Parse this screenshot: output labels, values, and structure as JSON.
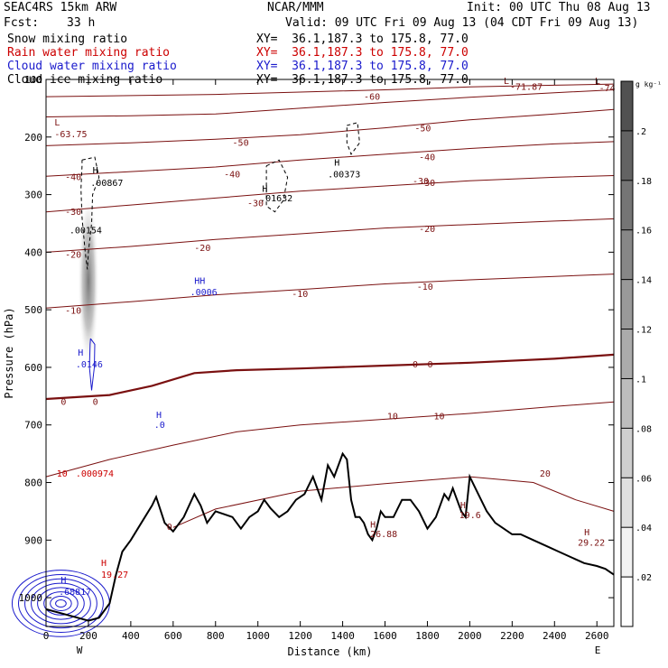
{
  "header": {
    "model": "SEAC4RS 15km ARW",
    "org": "NCAR/MMM",
    "init": "Init: 00 UTC Thu 08 Aug 13",
    "fcst_label": "Fcst:",
    "fcst_value": "33 h",
    "valid": "Valid: 09 UTC Fri 09 Aug 13 (04 CDT Fri 09 Aug 13)"
  },
  "legend": [
    {
      "name": "Snow mixing ratio",
      "xy": "XY=  36.1,187.3 to 175.8, 77.0",
      "color": "#000000"
    },
    {
      "name": "Rain water mixing ratio",
      "xy": "XY=  36.1,187.3 to 175.8, 77.0",
      "color": "#cc0000"
    },
    {
      "name": "Cloud water mixing ratio",
      "xy": "XY=  36.1,187.3 to 175.8, 77.0",
      "color": "#1a1acc"
    },
    {
      "name": "Cloud ice mixing ratio",
      "xy": "XY=  36.1,187.3 to 175.8, 77.0",
      "color": "#000000"
    }
  ],
  "chart_data": {
    "type": "line",
    "xlabel": "Distance (km)",
    "ylabel": "Pressure (hPa)",
    "xlim": [
      0,
      2680
    ],
    "ylim": [
      1050,
      100
    ],
    "xticks": [
      0,
      200,
      400,
      600,
      800,
      1000,
      1200,
      1400,
      1600,
      1800,
      2000,
      2200,
      2400,
      2600
    ],
    "yticks": [
      200,
      300,
      400,
      500,
      600,
      700,
      800,
      900,
      1000
    ],
    "ytick_top_label": "100",
    "x_end_labels": {
      "left": "W",
      "right": "E"
    },
    "colorbar": {
      "unit": "g kg⁻¹",
      "ticks": [
        ".02",
        ".04",
        ".06",
        ".08",
        ".1",
        ".12",
        ".14",
        ".16",
        ".18",
        ".2"
      ],
      "ramp": [
        "#ffffff",
        "#f2f2f2",
        "#e0e0e0",
        "#cfcfcf",
        "#bdbdbd",
        "#ababab",
        "#999999",
        "#878787",
        "#757575",
        "#636363",
        "#515151"
      ]
    },
    "temperature_contours": [
      {
        "value": -70,
        "points": [
          [
            0,
            130
          ],
          [
            400,
            128
          ],
          [
            800,
            126
          ],
          [
            1200,
            122
          ],
          [
            1600,
            118
          ],
          [
            2000,
            113
          ],
          [
            2400,
            110
          ],
          [
            2680,
            108
          ]
        ]
      },
      {
        "value": -60,
        "points": [
          [
            0,
            165
          ],
          [
            400,
            163
          ],
          [
            800,
            160
          ],
          [
            1200,
            150
          ],
          [
            1600,
            140
          ],
          [
            2000,
            131
          ],
          [
            2400,
            123
          ],
          [
            2680,
            118
          ]
        ]
      },
      {
        "value": -50,
        "points": [
          [
            0,
            215
          ],
          [
            400,
            210
          ],
          [
            800,
            204
          ],
          [
            1200,
            196
          ],
          [
            1600,
            184
          ],
          [
            2000,
            170
          ],
          [
            2400,
            160
          ],
          [
            2680,
            152
          ]
        ]
      },
      {
        "value": -40,
        "points": [
          [
            0,
            268
          ],
          [
            400,
            260
          ],
          [
            800,
            252
          ],
          [
            1200,
            240
          ],
          [
            1600,
            230
          ],
          [
            2000,
            220
          ],
          [
            2400,
            212
          ],
          [
            2680,
            208
          ]
        ]
      },
      {
        "value": -30,
        "points": [
          [
            0,
            330
          ],
          [
            400,
            318
          ],
          [
            800,
            306
          ],
          [
            1200,
            294
          ],
          [
            1600,
            285
          ],
          [
            2000,
            276
          ],
          [
            2400,
            270
          ],
          [
            2680,
            267
          ]
        ]
      },
      {
        "value": -20,
        "points": [
          [
            0,
            400
          ],
          [
            400,
            390
          ],
          [
            800,
            378
          ],
          [
            1200,
            368
          ],
          [
            1600,
            358
          ],
          [
            2000,
            352
          ],
          [
            2400,
            346
          ],
          [
            2680,
            342
          ]
        ]
      },
      {
        "value": -10,
        "points": [
          [
            0,
            497
          ],
          [
            400,
            486
          ],
          [
            800,
            474
          ],
          [
            1200,
            465
          ],
          [
            1600,
            455
          ],
          [
            2000,
            448
          ],
          [
            2400,
            442
          ],
          [
            2680,
            438
          ]
        ]
      },
      {
        "value": 0,
        "points": [
          [
            0,
            655
          ],
          [
            300,
            648
          ],
          [
            500,
            632
          ],
          [
            700,
            610
          ],
          [
            900,
            605
          ],
          [
            1200,
            602
          ],
          [
            1600,
            597
          ],
          [
            2000,
            592
          ],
          [
            2400,
            585
          ],
          [
            2680,
            578
          ]
        ]
      },
      {
        "value": 10,
        "points": [
          [
            0,
            790
          ],
          [
            300,
            760
          ],
          [
            600,
            735
          ],
          [
            900,
            712
          ],
          [
            1200,
            700
          ],
          [
            1600,
            690
          ],
          [
            2000,
            680
          ],
          [
            2400,
            668
          ],
          [
            2680,
            660
          ]
        ]
      },
      {
        "value": 20,
        "points": [
          [
            600,
            878
          ],
          [
            800,
            846
          ],
          [
            1200,
            815
          ],
          [
            1600,
            802
          ],
          [
            2000,
            790
          ],
          [
            2300,
            800
          ],
          [
            2500,
            830
          ],
          [
            2680,
            850
          ]
        ]
      }
    ],
    "terrain": {
      "name": "surface pressure",
      "x": [
        0,
        100,
        200,
        250,
        300,
        330,
        360,
        400,
        450,
        500,
        520,
        560,
        600,
        650,
        700,
        730,
        760,
        800,
        840,
        880,
        920,
        960,
        1000,
        1030,
        1060,
        1100,
        1140,
        1180,
        1220,
        1260,
        1300,
        1330,
        1360,
        1380,
        1400,
        1420,
        1440,
        1460,
        1480,
        1500,
        1520,
        1540,
        1560,
        1580,
        1600,
        1640,
        1680,
        1720,
        1760,
        1800,
        1840,
        1880,
        1900,
        1920,
        1940,
        1960,
        1980,
        2000,
        2040,
        2080,
        2120,
        2160,
        2200,
        2240,
        2300,
        2360,
        2420,
        2480,
        2540,
        2600,
        2640,
        2680
      ],
      "y": [
        1020,
        1030,
        1040,
        1035,
        1010,
        960,
        920,
        900,
        870,
        840,
        825,
        870,
        885,
        860,
        820,
        840,
        870,
        850,
        855,
        860,
        880,
        860,
        850,
        830,
        845,
        860,
        850,
        830,
        820,
        790,
        830,
        770,
        790,
        770,
        750,
        760,
        830,
        860,
        860,
        870,
        890,
        900,
        880,
        850,
        860,
        860,
        830,
        830,
        850,
        880,
        860,
        820,
        830,
        810,
        830,
        850,
        860,
        790,
        820,
        850,
        870,
        880,
        890,
        890,
        900,
        910,
        920,
        930,
        940,
        945,
        950,
        960
      ]
    },
    "series": [
      {
        "type": "shaded",
        "label": "shaded mixing ratio",
        "x_center": 200,
        "p_top": 300,
        "p_bottom": 600,
        "width_km": 50,
        "peak": 0.18
      },
      {
        "type": "cloud_ice_contour",
        "points": [
          [
            170,
            240
          ],
          [
            230,
            235
          ],
          [
            250,
            270
          ],
          [
            220,
            300
          ],
          [
            215,
            350
          ],
          [
            200,
            400
          ],
          [
            195,
            430
          ],
          [
            185,
            400
          ],
          [
            170,
            340
          ],
          [
            165,
            290
          ],
          [
            170,
            250
          ],
          [
            170,
            240
          ]
        ]
      },
      {
        "type": "cloud_ice_contour",
        "points": [
          [
            1040,
            250
          ],
          [
            1100,
            240
          ],
          [
            1140,
            270
          ],
          [
            1120,
            310
          ],
          [
            1080,
            330
          ],
          [
            1040,
            320
          ],
          [
            1040,
            250
          ]
        ]
      },
      {
        "type": "cloud_ice_contour",
        "points": [
          [
            1420,
            180
          ],
          [
            1470,
            175
          ],
          [
            1480,
            210
          ],
          [
            1440,
            230
          ],
          [
            1420,
            210
          ],
          [
            1420,
            180
          ]
        ]
      },
      {
        "type": "cloud_water_contour",
        "points": [
          [
            210,
            550
          ],
          [
            230,
            560
          ],
          [
            228,
            600
          ],
          [
            215,
            640
          ],
          [
            205,
            600
          ],
          [
            208,
            560
          ],
          [
            210,
            550
          ]
        ]
      }
    ],
    "rings": [
      {
        "center": [
          70,
          1010
        ],
        "radii": [
          25,
          50,
          80,
          110,
          140,
          170,
          200,
          230
        ]
      }
    ],
    "annotations": [
      {
        "text": "-71.87",
        "x": 2190,
        "p": 118,
        "color": "#7a1010"
      },
      {
        "text": "-74",
        "x": 2610,
        "p": 120,
        "color": "#7a1010"
      },
      {
        "text": "L",
        "x": 2160,
        "p": 108,
        "color": "#7a1010"
      },
      {
        "text": "L",
        "x": 2590,
        "p": 108,
        "color": "#7a1010"
      },
      {
        "text": "L",
        "x": 40,
        "p": 180,
        "color": "#7a1010"
      },
      {
        "text": "-63.75",
        "x": 40,
        "p": 200,
        "color": "#7a1010"
      },
      {
        "text": "H",
        "x": 220,
        "p": 263,
        "color": "#000000"
      },
      {
        "text": ".00867",
        "x": 210,
        "p": 285,
        "color": "#000000"
      },
      {
        "text": ".00154",
        "x": 110,
        "p": 367,
        "color": "#000000"
      },
      {
        "text": "H",
        "x": 1020,
        "p": 295,
        "color": "#000000"
      },
      {
        "text": ".01632",
        "x": 1010,
        "p": 312,
        "color": "#000000"
      },
      {
        "text": "H",
        "x": 1360,
        "p": 250,
        "color": "#000000"
      },
      {
        "text": ".00373",
        "x": 1330,
        "p": 270,
        "color": "#000000"
      },
      {
        "text": "HH",
        "x": 700,
        "p": 455,
        "color": "#1a1acc"
      },
      {
        "text": ".0006",
        "x": 680,
        "p": 475,
        "color": "#1a1acc"
      },
      {
        "text": "H",
        "x": 150,
        "p": 580,
        "color": "#1a1acc"
      },
      {
        "text": ".0146",
        "x": 140,
        "p": 600,
        "color": "#1a1acc"
      },
      {
        "text": "H",
        "x": 520,
        "p": 688,
        "color": "#1a1acc"
      },
      {
        "text": ".0",
        "x": 510,
        "p": 705,
        "color": "#1a1acc"
      },
      {
        "text": "H",
        "x": 70,
        "p": 975,
        "color": "#1a1acc"
      },
      {
        "text": ".68817",
        "x": 60,
        "p": 995,
        "color": "#1a1acc"
      },
      {
        "text": "H",
        "x": 260,
        "p": 945,
        "color": "#cc0000"
      },
      {
        "text": "19.27",
        "x": 260,
        "p": 965,
        "color": "#cc0000"
      },
      {
        "text": "10",
        "x": 50,
        "p": 790,
        "color": "#cc0000"
      },
      {
        "text": ".000974",
        "x": 140,
        "p": 790,
        "color": "#cc0000"
      },
      {
        "text": "26.88",
        "x": 1530,
        "p": 895,
        "color": "#7a1010"
      },
      {
        "text": "H",
        "x": 1530,
        "p": 878,
        "color": "#7a1010"
      },
      {
        "text": "H",
        "x": 1955,
        "p": 845,
        "color": "#7a1010"
      },
      {
        "text": "19.6",
        "x": 1950,
        "p": 862,
        "color": "#7a1010"
      },
      {
        "text": "H",
        "x": 2540,
        "p": 892,
        "color": "#7a1010"
      },
      {
        "text": "29.22",
        "x": 2510,
        "p": 910,
        "color": "#7a1010"
      },
      {
        "text": "20",
        "x": 2330,
        "p": 790,
        "color": "#7a1010"
      },
      {
        "text": "0",
        "x": 570,
        "p": 882,
        "color": "#7a1010"
      },
      {
        "text": "-60",
        "x": 1500,
        "p": 135,
        "color": "#7a1010"
      },
      {
        "text": "-50",
        "x": 880,
        "p": 215,
        "color": "#7a1010"
      },
      {
        "text": "-50",
        "x": 1740,
        "p": 190,
        "color": "#7a1010"
      },
      {
        "text": "-40",
        "x": 90,
        "p": 275,
        "color": "#7a1010"
      },
      {
        "text": "-40",
        "x": 840,
        "p": 270,
        "color": "#7a1010"
      },
      {
        "text": "-40",
        "x": 1760,
        "p": 240,
        "color": "#7a1010"
      },
      {
        "text": "-30",
        "x": 90,
        "p": 335,
        "color": "#7a1010"
      },
      {
        "text": "-30",
        "x": 950,
        "p": 320,
        "color": "#7a1010"
      },
      {
        "text": "-30",
        "x": 1760,
        "p": 285,
        "color": "#7a1010"
      },
      {
        "text": "-30",
        "x": 1730,
        "p": 282,
        "color": "#7a1010"
      },
      {
        "text": "-20",
        "x": 90,
        "p": 410,
        "color": "#7a1010"
      },
      {
        "text": "-20",
        "x": 700,
        "p": 398,
        "color": "#7a1010"
      },
      {
        "text": "-20",
        "x": 1760,
        "p": 365,
        "color": "#7a1010"
      },
      {
        "text": "-10",
        "x": 90,
        "p": 507,
        "color": "#7a1010"
      },
      {
        "text": "-10",
        "x": 1750,
        "p": 465,
        "color": "#7a1010"
      },
      {
        "text": "-10",
        "x": 1160,
        "p": 478,
        "color": "#7a1010"
      },
      {
        "text": "0",
        "x": 70,
        "p": 665,
        "color": "#7a1010"
      },
      {
        "text": "0",
        "x": 220,
        "p": 665,
        "color": "#7a1010"
      },
      {
        "text": "0",
        "x": 1730,
        "p": 600,
        "color": "#7a1010"
      },
      {
        "text": "0",
        "x": 1800,
        "p": 600,
        "color": "#7a1010"
      },
      {
        "text": "10",
        "x": 1610,
        "p": 690,
        "color": "#7a1010"
      },
      {
        "text": "10",
        "x": 1830,
        "p": 690,
        "color": "#7a1010"
      }
    ]
  }
}
